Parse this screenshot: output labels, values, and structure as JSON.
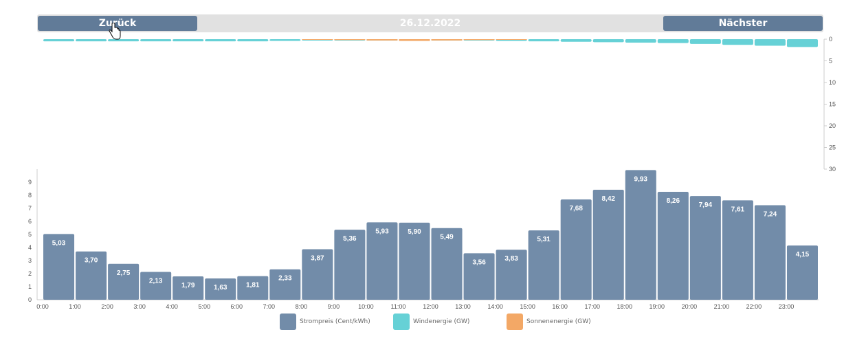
{
  "nav": {
    "prev_label": "Zurück",
    "next_label": "Nächster",
    "date": "26.12.2022"
  },
  "colors": {
    "price": "#728ca9",
    "wind": "#66d1d6",
    "solar": "#f3a866",
    "nav_button": "#617b98",
    "nav_bar": "#e1e1e1"
  },
  "chart_data": {
    "type": "bar",
    "categories": [
      "0:00",
      "1:00",
      "2:00",
      "3:00",
      "4:00",
      "5:00",
      "6:00",
      "7:00",
      "8:00",
      "9:00",
      "10:00",
      "11:00",
      "12:00",
      "13:00",
      "14:00",
      "15:00",
      "16:00",
      "17:00",
      "18:00",
      "19:00",
      "20:00",
      "21:00",
      "22:00",
      "23:00"
    ],
    "series": [
      {
        "name": "Strompreis (Cent/kWh)",
        "type": "bar",
        "axis": "left",
        "values": [
          5.03,
          3.7,
          2.75,
          2.13,
          1.79,
          1.63,
          1.81,
          2.33,
          3.87,
          5.36,
          5.93,
          5.9,
          5.49,
          3.56,
          3.83,
          5.31,
          7.68,
          8.42,
          9.93,
          8.26,
          7.94,
          7.61,
          7.24,
          4.15
        ],
        "labels": [
          "5,03",
          "3,70",
          "2,75",
          "2,13",
          "1,79",
          "1,63",
          "1,81",
          "2,33",
          "3,87",
          "5,36",
          "5,93",
          "5,90",
          "5,49",
          "3,56",
          "3,83",
          "5,31",
          "7,68",
          "8,42",
          "9,93",
          "8,26",
          "7,94",
          "7,61",
          "7,24",
          "4,15"
        ]
      },
      {
        "name": "Windenergie (GW)",
        "type": "bar",
        "axis": "right-reversed",
        "values": [
          0.5,
          0.5,
          0.5,
          0.5,
          0.5,
          0.5,
          0.5,
          0.4,
          0.3,
          0.3,
          0.2,
          0.2,
          0.2,
          0.3,
          0.4,
          0.5,
          0.6,
          0.7,
          0.8,
          0.9,
          1.1,
          1.3,
          1.5,
          1.8
        ]
      },
      {
        "name": "Sonnenenergie (GW)",
        "type": "bar",
        "axis": "right-reversed",
        "values": [
          0,
          0,
          0,
          0,
          0,
          0,
          0,
          0,
          0.1,
          0.2,
          0.3,
          0.4,
          0.3,
          0.2,
          0.1,
          0,
          0,
          0,
          0,
          0,
          0,
          0,
          0,
          0
        ]
      }
    ],
    "left_axis": {
      "ticks": [
        0,
        1,
        2,
        3,
        4,
        5,
        6,
        7,
        8,
        9
      ],
      "range": [
        0,
        10
      ]
    },
    "right_axis": {
      "ticks": [
        0,
        5,
        10,
        15,
        20,
        25,
        30
      ],
      "range": [
        0,
        30
      ],
      "reversed": true
    },
    "legend_position": "bottom"
  }
}
